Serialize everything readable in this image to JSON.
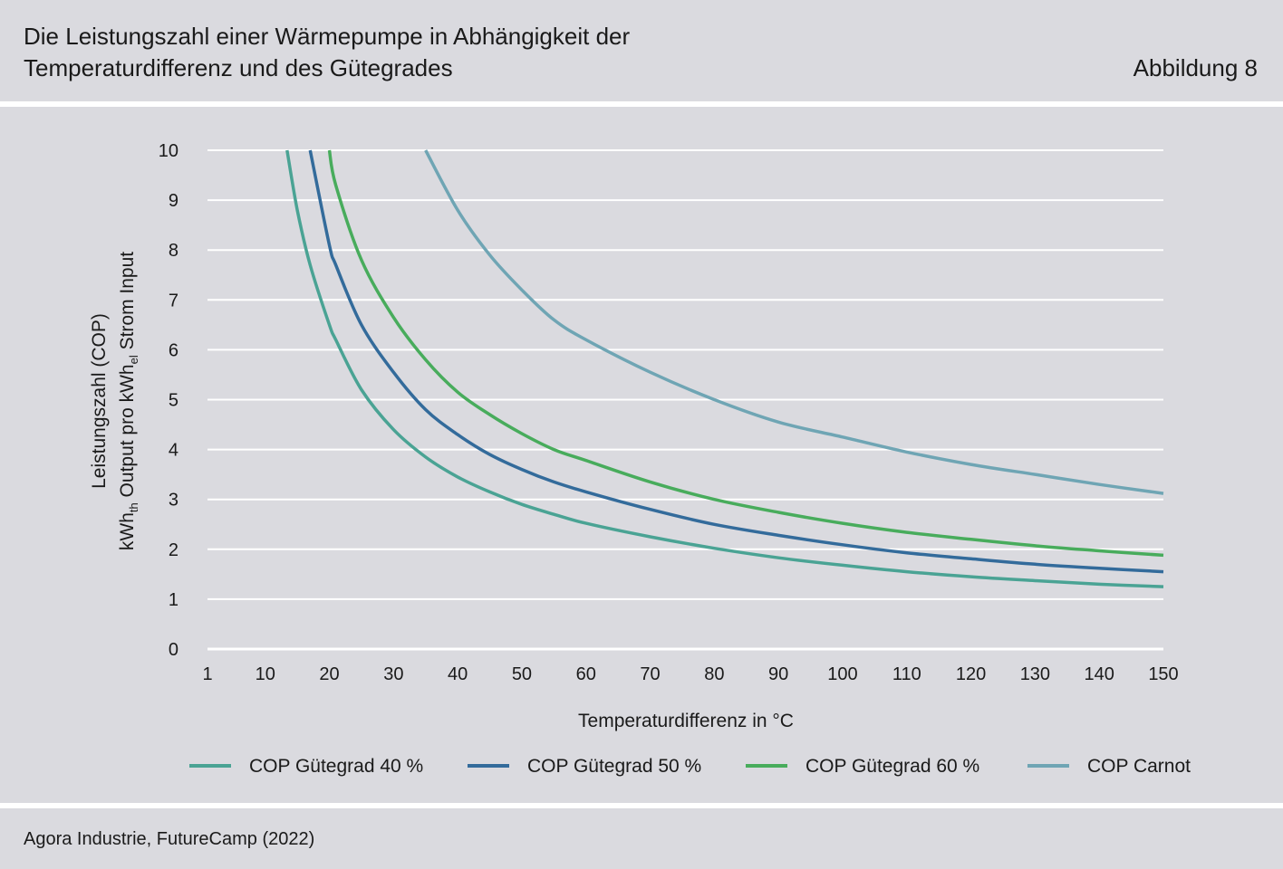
{
  "header": {
    "title_line1": "Die Leistungszahl einer Wärmepumpe in Abhängigkeit der",
    "title_line2": "Temperaturdifferenz und des Gütegrades",
    "figure_label": "Abbildung 8"
  },
  "footer": {
    "source": "Agora Industrie, FutureCamp (2022)"
  },
  "chart_data": {
    "type": "line",
    "xlabel": "Temperaturdifferenz in °C",
    "ylabel_line1": "Leistungszahl (COP)",
    "ylabel_line2": {
      "a": "kWh",
      "a_sub": "th",
      "b": " Output pro kWh",
      "b_sub": "el",
      "c": " Strom Input"
    },
    "xlim": [
      1,
      150
    ],
    "ylim": [
      0,
      10
    ],
    "x_ticks": [
      1,
      10,
      20,
      30,
      40,
      50,
      60,
      70,
      80,
      90,
      100,
      110,
      120,
      130,
      140,
      150
    ],
    "y_ticks": [
      0,
      1,
      2,
      3,
      4,
      5,
      6,
      7,
      8,
      9,
      10
    ],
    "grid": "horizontal",
    "legend_position": "bottom",
    "x": [
      13.4,
      15,
      17,
      20,
      21,
      25,
      30,
      35,
      40,
      45,
      50,
      55,
      60,
      70,
      80,
      90,
      100,
      110,
      120,
      130,
      140,
      150
    ],
    "series": [
      {
        "name": "COP Gütegrad 40 %",
        "color": "#4aa394",
        "values": [
          10.0,
          8.8,
          7.7,
          6.5,
          6.2,
          5.2,
          4.4,
          3.85,
          3.45,
          3.15,
          2.9,
          2.7,
          2.52,
          2.25,
          2.02,
          1.83,
          1.68,
          1.55,
          1.45,
          1.37,
          1.3,
          1.25
        ]
      },
      {
        "name": "COP Gütegrad 50 %",
        "color": "#336b9b",
        "values": [
          null,
          null,
          10.0,
          8.1,
          7.7,
          6.5,
          5.55,
          4.8,
          4.3,
          3.9,
          3.6,
          3.35,
          3.15,
          2.8,
          2.5,
          2.28,
          2.09,
          1.93,
          1.81,
          1.7,
          1.62,
          1.55
        ]
      },
      {
        "name": "COP Gütegrad 60 %",
        "color": "#48ac5c",
        "values": [
          null,
          null,
          null,
          10.0,
          9.3,
          7.8,
          6.65,
          5.8,
          5.15,
          4.7,
          4.32,
          4.0,
          3.78,
          3.35,
          3.0,
          2.74,
          2.52,
          2.34,
          2.2,
          2.07,
          1.97,
          1.88
        ]
      },
      {
        "name": "COP Carnot",
        "color": "#6fa5b4",
        "x": [
          35,
          40,
          45,
          50,
          55,
          60,
          70,
          80,
          90,
          100,
          110,
          120,
          130,
          140,
          150
        ],
        "values": [
          10.0,
          8.8,
          7.9,
          7.2,
          6.6,
          6.2,
          5.55,
          5.0,
          4.55,
          4.25,
          3.95,
          3.7,
          3.5,
          3.3,
          3.12
        ]
      }
    ]
  }
}
